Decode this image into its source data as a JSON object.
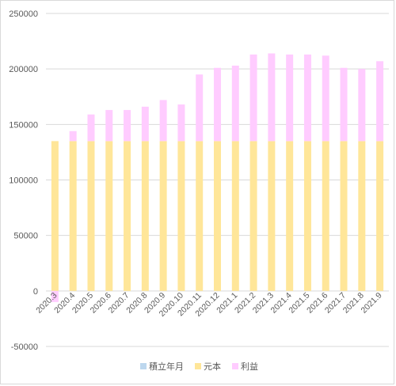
{
  "chart_data": {
    "type": "bar",
    "stacked": true,
    "title": "",
    "xlabel": "",
    "ylabel": "",
    "ylim": [
      -50000,
      250000
    ],
    "ytick_step": 50000,
    "yticks": [
      "250000",
      "200000",
      "150000",
      "100000",
      "50000",
      "0",
      "-50000"
    ],
    "grid": true,
    "legend_position": "bottom",
    "categories": [
      "2020.3",
      "2020.4",
      "2020.5",
      "2020.6",
      "2020.7",
      "2020.8",
      "2020.9",
      "2020.10",
      "2020.11",
      "2020.12",
      "2021.1",
      "2021.2",
      "2021.3",
      "2021.4",
      "2021.5",
      "2021.6",
      "2021.7",
      "2021.8",
      "2021.9"
    ],
    "series": [
      {
        "name": "積立年月",
        "color": "#bdd7ee",
        "values": [
          0,
          0,
          0,
          0,
          0,
          0,
          0,
          0,
          0,
          0,
          0,
          0,
          0,
          0,
          0,
          0,
          0,
          0,
          0
        ]
      },
      {
        "name": "元本",
        "color": "#ffe699",
        "values": [
          135000,
          135000,
          135000,
          135000,
          135000,
          135000,
          135000,
          135000,
          135000,
          135000,
          135000,
          135000,
          135000,
          135000,
          135000,
          135000,
          135000,
          135000,
          135000
        ]
      },
      {
        "name": "利益",
        "color": "#ffccff",
        "values": [
          -10000,
          9000,
          24000,
          28000,
          28000,
          31000,
          37000,
          33000,
          60000,
          66000,
          68000,
          78000,
          79000,
          78000,
          78000,
          77000,
          66000,
          65000,
          72000
        ]
      }
    ]
  }
}
